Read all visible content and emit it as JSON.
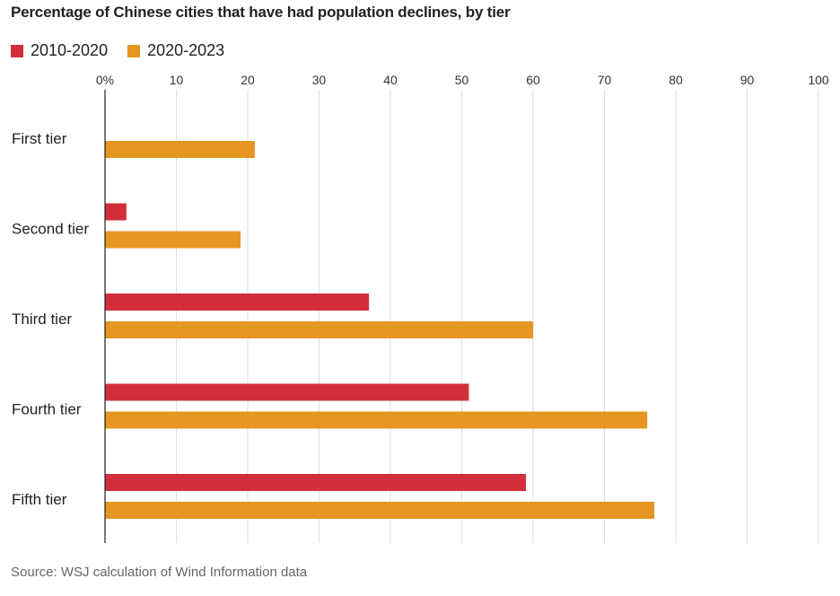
{
  "chart_data": {
    "type": "bar",
    "orientation": "horizontal",
    "title": "Percentage of Chinese cities that have had population declines, by tier",
    "categories": [
      "First tier",
      "Second tier",
      "Third tier",
      "Fourth tier",
      "Fifth tier"
    ],
    "series": [
      {
        "name": "2010-2020",
        "color": "#d22f3b",
        "values": [
          0,
          3,
          37,
          51,
          59
        ]
      },
      {
        "name": "2020-2023",
        "color": "#e59621",
        "values": [
          21,
          19,
          60,
          76,
          77
        ]
      }
    ],
    "xlim": [
      0,
      100
    ],
    "xticks": [
      "0%",
      "10",
      "20",
      "30",
      "40",
      "50",
      "60",
      "70",
      "80",
      "90",
      "100"
    ],
    "xtick_values": [
      0,
      10,
      20,
      30,
      40,
      50,
      60,
      70,
      80,
      90,
      100
    ],
    "grid": true,
    "legend_position": "top-left",
    "source": "Source: WSJ calculation of Wind Information data"
  }
}
